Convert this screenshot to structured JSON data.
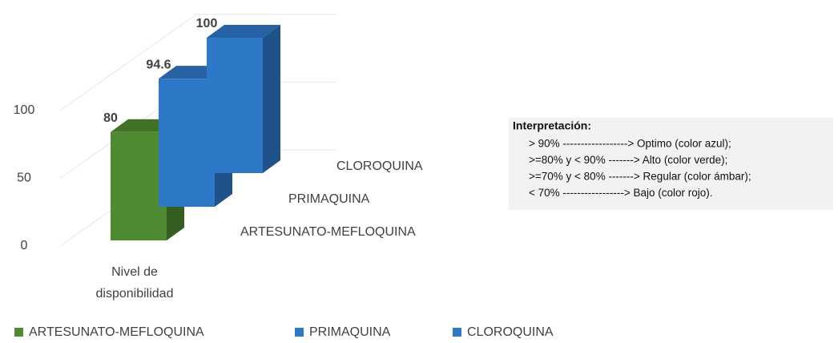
{
  "chart_data": {
    "type": "bar3d",
    "categories": [
      "Nivel de disponibilidad"
    ],
    "series": [
      {
        "name": "ARTESUNATO-MEFLOQUINA",
        "color": "#4e8a2f",
        "values": [
          80
        ]
      },
      {
        "name": "PRIMAQUINA",
        "color": "#2e78c8",
        "values": [
          94.6
        ]
      },
      {
        "name": "CLOROQUINA",
        "color": "#2e78c8",
        "values": [
          100
        ]
      }
    ],
    "ylim": [
      0,
      100
    ],
    "yticks": [
      0,
      50,
      100
    ],
    "grid": true,
    "legend": "bottom",
    "annotation": {
      "title": "Interpretación:",
      "lines": [
        "> 90% ------------------> Optimo (color azul);",
        ">=80% y < 90% -------> Alto (color verde);",
        ">=70% y < 80% -------> Regular (color ámbar);",
        "< 70%    -----------------> Bajo (color rojo)."
      ]
    }
  }
}
